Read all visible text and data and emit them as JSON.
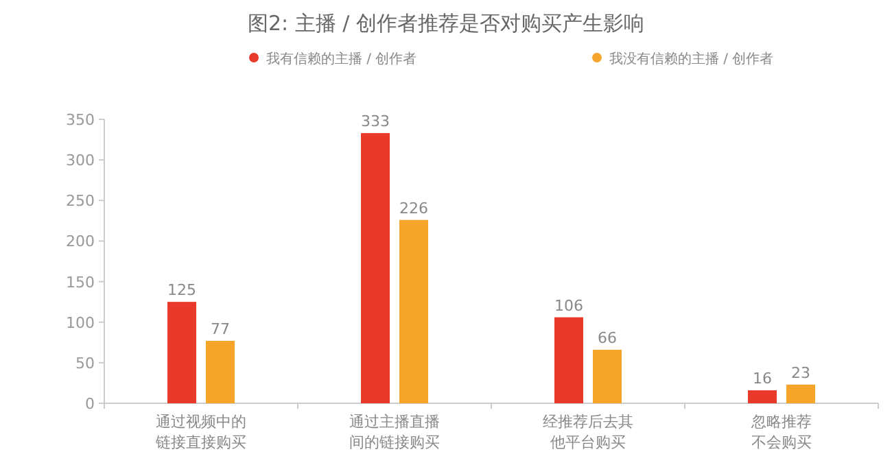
{
  "chart_data": {
    "type": "bar",
    "title": "图2: 主播 / 创作者推荐是否对购买产生影响",
    "categories": [
      "通过视频中的链接直接购买",
      "通过主播直播间的链接购买",
      "经推荐后去其他平台购买",
      "忽略推荐不会购买"
    ],
    "series": [
      {
        "name": "我有信赖的主播 / 创作者",
        "color": "#e8392a",
        "values": [
          125,
          333,
          106,
          16
        ]
      },
      {
        "name": "我没有信赖的主播 / 创作者",
        "color": "#f5a52a",
        "values": [
          77,
          226,
          66,
          23
        ]
      }
    ],
    "ylim": [
      0,
      350
    ],
    "yticks": [
      0,
      50,
      100,
      150,
      200,
      250,
      300,
      350
    ],
    "data_labels": true,
    "legend": "top",
    "grid": false
  }
}
